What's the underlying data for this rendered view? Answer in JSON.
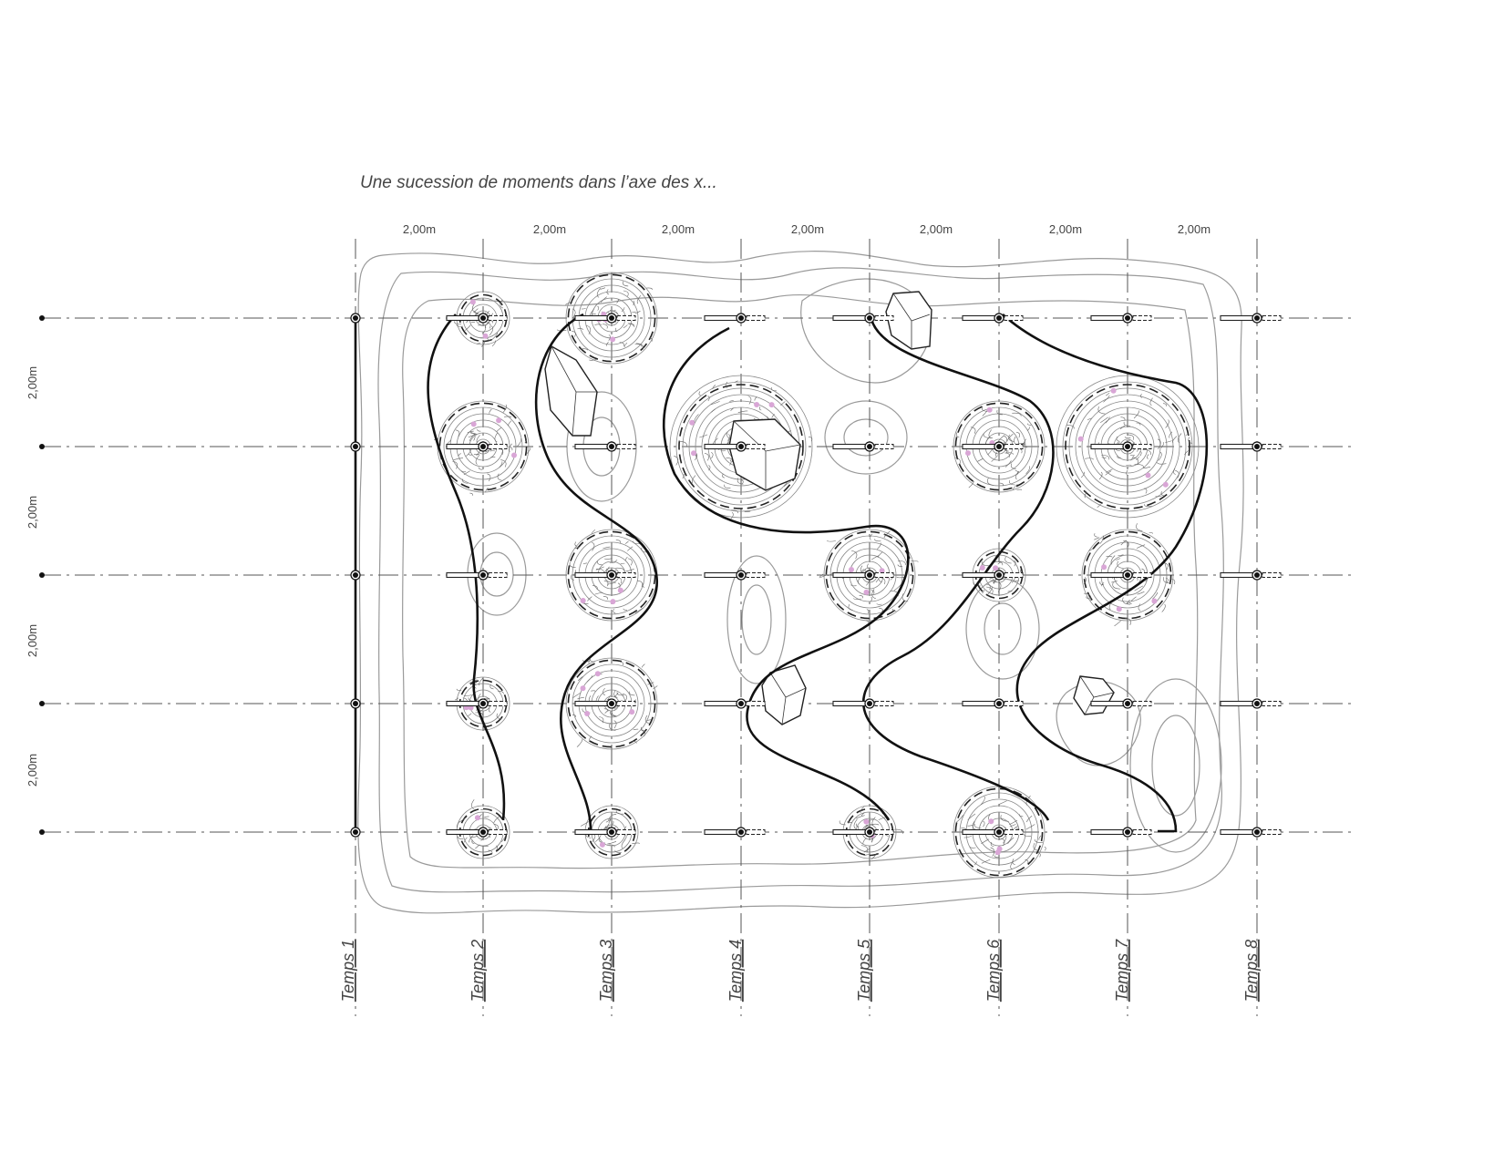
{
  "caption": "Une sucession de moments dans l’axe des x...",
  "dimensions_x": [
    "2,00m",
    "2,00m",
    "2,00m",
    "2,00m",
    "2,00m",
    "2,00m",
    "2,00m"
  ],
  "dimensions_y": [
    "2,00m",
    "2,00m",
    "2,00m",
    "2,00m"
  ],
  "temps_labels": [
    "Temps 1",
    "Temps 2",
    "Temps 3",
    "Temps 4",
    "Temps 5",
    "Temps 6",
    "Temps 7",
    "Temps 8"
  ],
  "colors": {
    "ink": "#111111",
    "contour": "#9a9a9a",
    "flower": "#d9a6d6"
  },
  "grid": {
    "columns": 8,
    "rows": 5
  },
  "plants": [
    {
      "col": 1,
      "row": 0,
      "size": "small"
    },
    {
      "col": 2,
      "row": 0,
      "size": "medium"
    },
    {
      "col": 1,
      "row": 1,
      "size": "medium"
    },
    {
      "col": 3,
      "row": 1,
      "size": "large"
    },
    {
      "col": 5,
      "row": 1,
      "size": "medium"
    },
    {
      "col": 6,
      "row": 1,
      "size": "large"
    },
    {
      "col": 2,
      "row": 2,
      "size": "medium"
    },
    {
      "col": 4,
      "row": 2,
      "size": "medium"
    },
    {
      "col": 5,
      "row": 2,
      "size": "small"
    },
    {
      "col": 6,
      "row": 2,
      "size": "medium"
    },
    {
      "col": 1,
      "row": 3,
      "size": "small"
    },
    {
      "col": 2,
      "row": 3,
      "size": "medium"
    },
    {
      "col": 1,
      "row": 4,
      "size": "small"
    },
    {
      "col": 2,
      "row": 4,
      "size": "small"
    },
    {
      "col": 4,
      "row": 4,
      "size": "small"
    },
    {
      "col": 5,
      "row": 4,
      "size": "medium"
    }
  ],
  "rocks_count": 5,
  "icons": [
    "compass-node-icon",
    "rock-icon",
    "plant-icon"
  ]
}
